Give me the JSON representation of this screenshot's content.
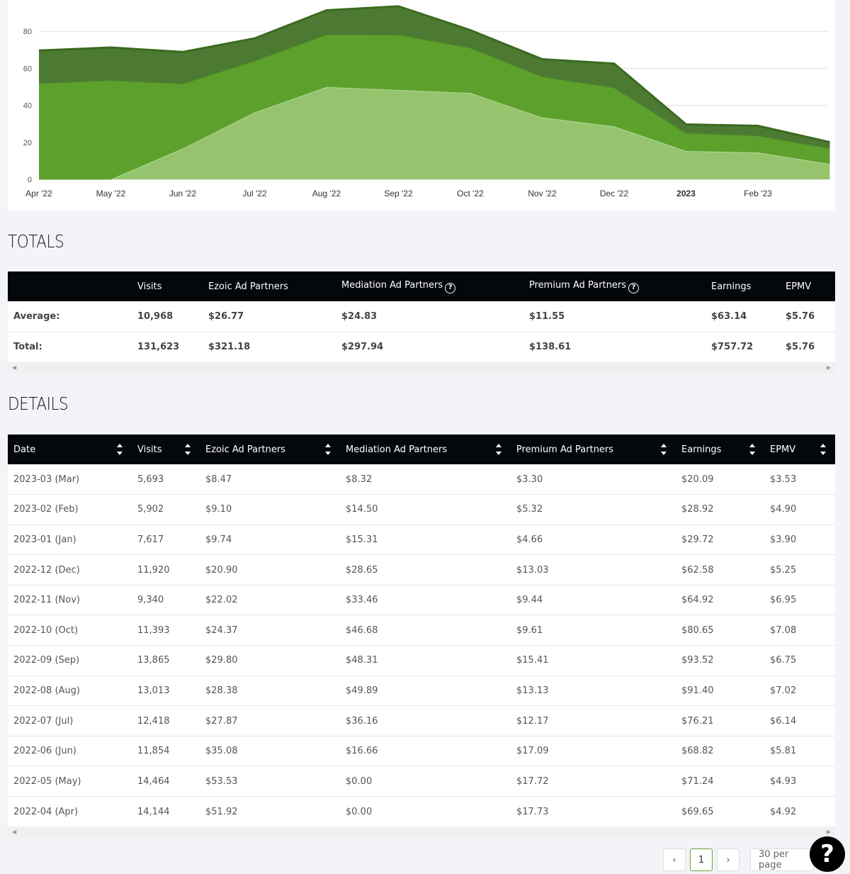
{
  "chart_data": {
    "type": "area",
    "stacked": true,
    "x_labels": [
      "Apr '22",
      "May '22",
      "Jun '22",
      "Jul '22",
      "Aug '22",
      "Sep '22",
      "Oct '22",
      "Nov '22",
      "Dec '22",
      "2023",
      "Feb '23"
    ],
    "x": [
      "2022-04",
      "2022-05",
      "2022-06",
      "2022-07",
      "2022-08",
      "2022-09",
      "2022-10",
      "2022-11",
      "2022-12",
      "2023-01",
      "2023-02",
      "2023-03"
    ],
    "y_ticks": [
      0,
      20,
      40,
      60,
      80
    ],
    "ylim": [
      0,
      95
    ],
    "grid": true,
    "series": [
      {
        "values": [
          0.0,
          0.0,
          16.66,
          36.16,
          49.89,
          48.31,
          46.68,
          33.46,
          28.65,
          15.31,
          14.5,
          8.32
        ],
        "color": "#96c46e"
      },
      {
        "values": [
          51.92,
          53.53,
          35.08,
          27.87,
          28.38,
          29.8,
          24.37,
          22.02,
          20.9,
          9.74,
          9.1,
          8.47
        ],
        "color": "#5da12c"
      },
      {
        "values": [
          17.73,
          17.72,
          17.09,
          12.17,
          13.13,
          15.41,
          9.61,
          9.44,
          13.03,
          4.66,
          5.32,
          3.3
        ],
        "color": "#4d7a33"
      }
    ]
  },
  "totals": {
    "title": "TOTALS",
    "columns": [
      "",
      "Visits",
      "Ezoic Ad Partners",
      "Mediation Ad Partners",
      "Premium Ad Partners",
      "Earnings",
      "EPMV"
    ],
    "help_columns": [
      3,
      4
    ],
    "rows": [
      [
        "Average:",
        "10,968",
        "$26.77",
        "$24.83",
        "$11.55",
        "$63.14",
        "$5.76"
      ],
      [
        "Total:",
        "131,623",
        "$321.18",
        "$297.94",
        "$138.61",
        "$757.72",
        "$5.76"
      ]
    ]
  },
  "details": {
    "title": "DETAILS",
    "columns": [
      "Date",
      "Visits",
      "Ezoic Ad Partners",
      "Mediation Ad Partners",
      "Premium Ad Partners",
      "Earnings",
      "EPMV"
    ],
    "rows": [
      [
        "2023-03 (Mar)",
        "5,693",
        "$8.47",
        "$8.32",
        "$3.30",
        "$20.09",
        "$3.53"
      ],
      [
        "2023-02 (Feb)",
        "5,902",
        "$9.10",
        "$14.50",
        "$5.32",
        "$28.92",
        "$4.90"
      ],
      [
        "2023-01 (Jan)",
        "7,617",
        "$9.74",
        "$15.31",
        "$4.66",
        "$29.72",
        "$3.90"
      ],
      [
        "2022-12 (Dec)",
        "11,920",
        "$20.90",
        "$28.65",
        "$13.03",
        "$62.58",
        "$5.25"
      ],
      [
        "2022-11 (Nov)",
        "9,340",
        "$22.02",
        "$33.46",
        "$9.44",
        "$64.92",
        "$6.95"
      ],
      [
        "2022-10 (Oct)",
        "11,393",
        "$24.37",
        "$46.68",
        "$9.61",
        "$80.65",
        "$7.08"
      ],
      [
        "2022-09 (Sep)",
        "13,865",
        "$29.80",
        "$48.31",
        "$15.41",
        "$93.52",
        "$6.75"
      ],
      [
        "2022-08 (Aug)",
        "13,013",
        "$28.38",
        "$49.89",
        "$13.13",
        "$91.40",
        "$7.02"
      ],
      [
        "2022-07 (Jul)",
        "12,418",
        "$27.87",
        "$36.16",
        "$12.17",
        "$76.21",
        "$6.14"
      ],
      [
        "2022-06 (Jun)",
        "11,854",
        "$35.08",
        "$16.66",
        "$17.09",
        "$68.82",
        "$5.81"
      ],
      [
        "2022-05 (May)",
        "14,464",
        "$53.53",
        "$0.00",
        "$17.72",
        "$71.24",
        "$4.93"
      ],
      [
        "2022-04 (Apr)",
        "14,144",
        "$51.92",
        "$0.00",
        "$17.73",
        "$69.65",
        "$4.92"
      ]
    ]
  },
  "pagination": {
    "prev_label": "‹",
    "current_page": "1",
    "next_label": "›",
    "per_page": "30 per page"
  },
  "help_button": "?"
}
